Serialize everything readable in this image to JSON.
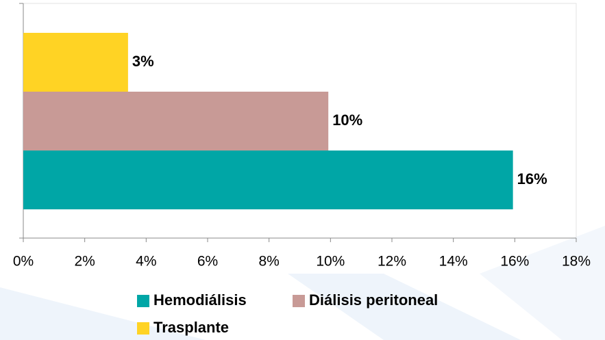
{
  "chart_data": {
    "type": "bar",
    "orientation": "horizontal",
    "categories": [
      null
    ],
    "series": [
      {
        "name": "Hemodiálisis",
        "color": "#00a6a6",
        "values": [
          15.94
        ],
        "value_labels": [
          "16%"
        ]
      },
      {
        "name": "Diálisis peritoneal",
        "color": "#c89a96",
        "values": [
          9.93
        ],
        "value_labels": [
          "10%"
        ]
      },
      {
        "name": "Trasplante",
        "color": "#ffd324",
        "values": [
          3.41
        ],
        "value_labels": [
          "3%"
        ]
      }
    ],
    "xlim": [
      0,
      18
    ],
    "xticks": [
      {
        "value": 0,
        "label": "0%"
      },
      {
        "value": 2,
        "label": "2%"
      },
      {
        "value": 4,
        "label": "4%"
      },
      {
        "value": 6,
        "label": "6%"
      },
      {
        "value": 8,
        "label": "8%"
      },
      {
        "value": 10,
        "label": "10%"
      },
      {
        "value": 12,
        "label": "12%"
      },
      {
        "value": 14,
        "label": "14%"
      },
      {
        "value": 16,
        "label": "16%"
      },
      {
        "value": 18,
        "label": "18%"
      }
    ],
    "legend": "bottom"
  }
}
